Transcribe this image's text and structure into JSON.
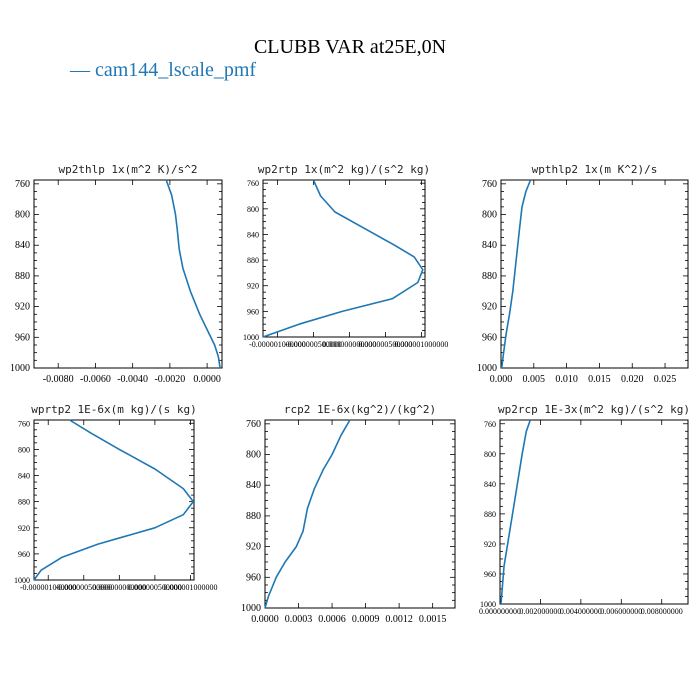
{
  "title": "CLUBB VAR at25E,0N",
  "legend": "cam144_lscale_pmf",
  "colors": {
    "series": "#1f77b4",
    "axis": "#000000"
  },
  "chart_data": [
    {
      "type": "line",
      "title": "wp2thlp  1x(m^2 K)/s^2",
      "series_name": "cam144_lscale_pmf",
      "ylim": [
        1000,
        755
      ],
      "yticks": [
        760,
        800,
        840,
        880,
        920,
        960,
        1000
      ],
      "ytick_labels": [
        "760",
        "800",
        "840",
        "880",
        "920",
        "960",
        "1000"
      ],
      "xlim": [
        -0.0093,
        0.0008
      ],
      "xticks": [
        -0.008,
        -0.006,
        -0.004,
        -0.002,
        0.0
      ],
      "xtick_labels": [
        "-0.0080",
        "-0.0060",
        "-0.0040",
        "-0.0020",
        "0.0000"
      ],
      "x": [
        -0.0022,
        -0.0019,
        -0.0017,
        -0.0016,
        -0.0015,
        -0.0013,
        -0.0009,
        -0.0004,
        0.0001,
        0.0004,
        0.0006,
        0.0007
      ],
      "y": [
        755,
        775,
        800,
        820,
        845,
        870,
        900,
        930,
        955,
        970,
        985,
        1000
      ]
    },
    {
      "type": "line",
      "title": "wp2rtp  1x(m^2 kg)/(s^2 kg)",
      "series_name": "cam144_lscale_pmf",
      "ylim": [
        1000,
        755
      ],
      "yticks": [
        760,
        800,
        840,
        880,
        920,
        960,
        1000
      ],
      "ytick_labels": [
        "760",
        "800",
        "840",
        "880",
        "920",
        "960",
        "1000"
      ],
      "xlim": [
        -1.2e-06,
        1.05e-06
      ],
      "xticks": [
        -1e-06,
        -5e-07,
        0.0,
        5e-07,
        1e-06
      ],
      "xtick_labels": [
        "-0.000001000000",
        "-0.000000500000",
        "0.000000000000",
        "0.000000500000",
        "0.000001000000"
      ],
      "x": [
        -5e-07,
        -4e-07,
        -2e-07,
        2e-07,
        6e-07,
        9e-07,
        1.02e-06,
        9.5e-07,
        6e-07,
        -1e-07,
        -7e-07,
        -1.2e-06
      ],
      "y": [
        755,
        780,
        805,
        830,
        855,
        875,
        895,
        915,
        940,
        960,
        980,
        1000
      ]
    },
    {
      "type": "line",
      "title": "wpthlp2  1x(m K^2)/s",
      "series_name": "cam144_lscale_pmf",
      "ylim": [
        1000,
        755
      ],
      "yticks": [
        760,
        800,
        840,
        880,
        920,
        960,
        1000
      ],
      "ytick_labels": [
        "760",
        "800",
        "840",
        "880",
        "920",
        "960",
        "1000"
      ],
      "xlim": [
        0.0,
        0.0285
      ],
      "xticks": [
        0.0,
        0.005,
        0.01,
        0.015,
        0.02,
        0.025
      ],
      "xtick_labels": [
        "0.000",
        "0.005",
        "0.010",
        "0.015",
        "0.020",
        "0.025"
      ],
      "x": [
        0.0045,
        0.0038,
        0.0032,
        0.0028,
        0.0023,
        0.0018,
        0.0013,
        0.0008,
        0.0004,
        0.0001
      ],
      "y": [
        755,
        770,
        790,
        820,
        860,
        900,
        930,
        955,
        980,
        1000
      ]
    },
    {
      "type": "line",
      "title": "wprtp2  1E-6x(m kg)/(s kg)",
      "series_name": "cam144_lscale_pmf",
      "ylim": [
        1000,
        755
      ],
      "yticks": [
        760,
        800,
        840,
        880,
        920,
        960,
        1000
      ],
      "ytick_labels": [
        "760",
        "800",
        "840",
        "880",
        "920",
        "960",
        "1000"
      ],
      "xlim": [
        -1.2e-06,
        1.05e-06
      ],
      "xticks": [
        -1e-06,
        -5e-07,
        0.0,
        5e-07,
        1e-06
      ],
      "xtick_labels": [
        "-0.000001000000",
        "-0.000000500000",
        "0.000000000000",
        "0.000000500000",
        "0.000001000000"
      ],
      "x": [
        -7e-07,
        -4e-07,
        0.0,
        5e-07,
        9e-07,
        1.04e-06,
        9e-07,
        5e-07,
        -3e-07,
        -8e-07,
        -1.1e-06,
        -1.2e-06
      ],
      "y": [
        755,
        775,
        800,
        830,
        860,
        880,
        900,
        920,
        945,
        965,
        985,
        1000
      ]
    },
    {
      "type": "line",
      "title": "rcp2  1E-6x(kg^2)/(kg^2)",
      "series_name": "cam144_lscale_pmf",
      "ylim": [
        1000,
        755
      ],
      "yticks": [
        760,
        800,
        840,
        880,
        920,
        960,
        1000
      ],
      "ytick_labels": [
        "760",
        "800",
        "840",
        "880",
        "920",
        "960",
        "1000"
      ],
      "xlim": [
        0.0,
        0.0017
      ],
      "xticks": [
        0.0,
        0.0003,
        0.0006,
        0.0009,
        0.0012,
        0.0015
      ],
      "xtick_labels": [
        "0.0000",
        "0.0003",
        "0.0006",
        "0.0009",
        "0.0012",
        "0.0015"
      ],
      "x": [
        0.00076,
        0.00068,
        0.0006,
        0.00052,
        0.00044,
        0.00038,
        0.00034,
        0.00028,
        0.00018,
        0.0001,
        3e-05,
        0.0
      ],
      "y": [
        755,
        775,
        800,
        820,
        845,
        870,
        900,
        920,
        940,
        960,
        985,
        1000
      ]
    },
    {
      "type": "line",
      "title": "wp2rcp  1E-3x(m^2 kg)/(s^2 kg)",
      "series_name": "cam144_lscale_pmf",
      "ylim": [
        1000,
        755
      ],
      "yticks": [
        760,
        800,
        840,
        880,
        920,
        960,
        1000
      ],
      "ytick_labels": [
        "760",
        "800",
        "840",
        "880",
        "920",
        "960",
        "1000"
      ],
      "xlim": [
        0.0,
        0.0093
      ],
      "xticks": [
        0.0,
        0.002,
        0.004,
        0.006,
        0.008
      ],
      "xtick_labels": [
        "0.000000000",
        "0.002000000",
        "0.004000000",
        "0.006000000",
        "0.008000000"
      ],
      "x": [
        0.0015,
        0.0013,
        0.0011,
        0.0008,
        0.0005,
        0.0002,
        5e-05
      ],
      "y": [
        755,
        770,
        800,
        850,
        900,
        950,
        1000
      ]
    }
  ]
}
